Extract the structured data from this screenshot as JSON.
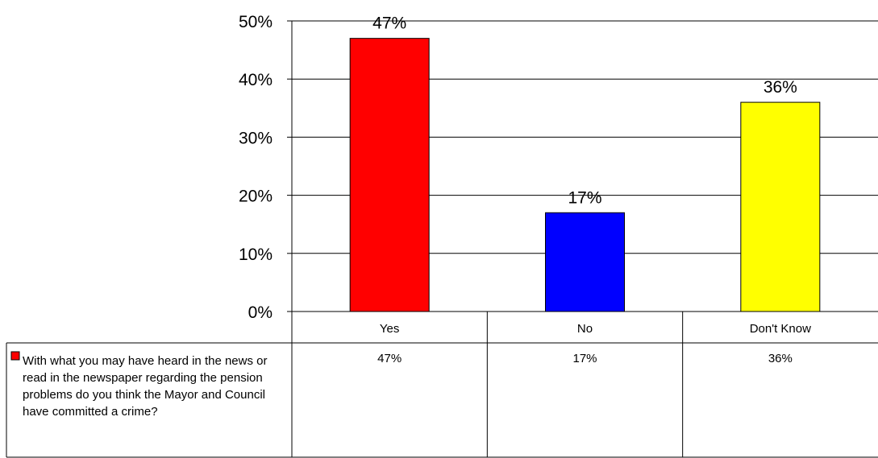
{
  "chart_data": {
    "type": "bar",
    "categories": [
      "Yes",
      "No",
      "Don't Know"
    ],
    "series": [
      {
        "name": "With what you may have heard in the news or read in the newspaper regarding the pension problems do you think the Mayor and Council have committed a crime?",
        "values": [
          47,
          17,
          36
        ],
        "color": "#ff0000"
      }
    ],
    "bar_colors": [
      "#ff0000",
      "#0000ff",
      "#ffff00"
    ],
    "data_labels": [
      "47%",
      "17%",
      "36%"
    ],
    "table_values": [
      "47%",
      "17%",
      "36%"
    ],
    "yticks": [
      "0%",
      "10%",
      "20%",
      "30%",
      "40%",
      "50%"
    ],
    "ylim": [
      0,
      50
    ],
    "grid": true,
    "legend": "data-table-left"
  }
}
